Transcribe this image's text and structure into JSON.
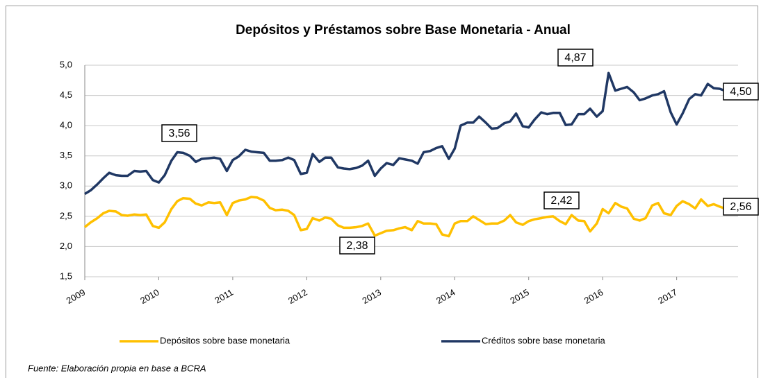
{
  "chart_data": {
    "type": "line",
    "title": "Depósitos y Préstamos sobre Base Monetaria - Anual",
    "x": [
      2009,
      2009.08,
      2009.17,
      2009.25,
      2009.33,
      2009.42,
      2009.5,
      2009.58,
      2009.67,
      2009.75,
      2009.83,
      2009.92,
      2010,
      2010.08,
      2010.17,
      2010.25,
      2010.33,
      2010.42,
      2010.5,
      2010.58,
      2010.67,
      2010.75,
      2010.83,
      2010.92,
      2011,
      2011.08,
      2011.17,
      2011.25,
      2011.33,
      2011.42,
      2011.5,
      2011.58,
      2011.67,
      2011.75,
      2011.83,
      2011.92,
      2012,
      2012.08,
      2012.17,
      2012.25,
      2012.33,
      2012.42,
      2012.5,
      2012.58,
      2012.67,
      2012.75,
      2012.83,
      2012.92,
      2013,
      2013.08,
      2013.17,
      2013.25,
      2013.33,
      2013.42,
      2013.5,
      2013.58,
      2013.67,
      2013.75,
      2013.83,
      2013.92,
      2014,
      2014.08,
      2014.17,
      2014.25,
      2014.33,
      2014.42,
      2014.5,
      2014.58,
      2014.67,
      2014.75,
      2014.83,
      2014.92,
      2015,
      2015.08,
      2015.17,
      2015.25,
      2015.33,
      2015.42,
      2015.5,
      2015.58,
      2015.67,
      2015.75,
      2015.83,
      2015.92,
      2016,
      2016.08,
      2016.17,
      2016.25,
      2016.33,
      2016.42,
      2016.5,
      2016.58,
      2016.67,
      2016.75,
      2016.83,
      2016.92,
      2017,
      2017.08,
      2017.17,
      2017.25,
      2017.33,
      2017.42,
      2017.5,
      2017.58,
      2017.67,
      2017.75
    ],
    "series": [
      {
        "name": "Depósitos sobre base monetaria",
        "color": "#ffc000",
        "values": [
          2.32,
          2.4,
          2.47,
          2.55,
          2.59,
          2.58,
          2.52,
          2.51,
          2.53,
          2.52,
          2.53,
          2.34,
          2.31,
          2.4,
          2.62,
          2.75,
          2.8,
          2.79,
          2.71,
          2.68,
          2.73,
          2.72,
          2.73,
          2.52,
          2.72,
          2.76,
          2.78,
          2.82,
          2.81,
          2.76,
          2.64,
          2.6,
          2.61,
          2.59,
          2.52,
          2.27,
          2.29,
          2.47,
          2.43,
          2.48,
          2.46,
          2.35,
          2.31,
          2.31,
          2.32,
          2.34,
          2.38,
          2.18,
          2.22,
          2.26,
          2.27,
          2.3,
          2.32,
          2.27,
          2.42,
          2.38,
          2.38,
          2.37,
          2.2,
          2.17,
          2.38,
          2.42,
          2.42,
          2.5,
          2.44,
          2.37,
          2.38,
          2.38,
          2.43,
          2.52,
          2.4,
          2.36,
          2.42,
          2.45,
          2.47,
          2.49,
          2.5,
          2.42,
          2.37,
          2.52,
          2.43,
          2.42,
          2.25,
          2.38,
          2.62,
          2.55,
          2.72,
          2.66,
          2.63,
          2.46,
          2.43,
          2.47,
          2.68,
          2.72,
          2.55,
          2.52,
          2.67,
          2.75,
          2.7,
          2.63,
          2.78,
          2.67,
          2.7,
          2.66,
          2.62,
          2.56
        ]
      },
      {
        "name": "Créditos sobre base monetaria",
        "color": "#203864",
        "values": [
          2.87,
          2.93,
          3.03,
          3.13,
          3.22,
          3.18,
          3.17,
          3.17,
          3.25,
          3.24,
          3.25,
          3.1,
          3.06,
          3.18,
          3.42,
          3.56,
          3.55,
          3.5,
          3.4,
          3.45,
          3.46,
          3.47,
          3.45,
          3.25,
          3.43,
          3.49,
          3.6,
          3.57,
          3.56,
          3.55,
          3.42,
          3.42,
          3.43,
          3.47,
          3.43,
          3.2,
          3.22,
          3.53,
          3.4,
          3.47,
          3.47,
          3.31,
          3.29,
          3.28,
          3.3,
          3.34,
          3.42,
          3.17,
          3.29,
          3.38,
          3.35,
          3.46,
          3.44,
          3.42,
          3.37,
          3.56,
          3.58,
          3.63,
          3.66,
          3.45,
          3.62,
          4.0,
          4.05,
          4.05,
          4.15,
          4.05,
          3.95,
          3.96,
          4.04,
          4.07,
          4.2,
          3.99,
          3.97,
          4.1,
          4.22,
          4.19,
          4.21,
          4.21,
          4.01,
          4.02,
          4.19,
          4.19,
          4.28,
          4.15,
          4.24,
          4.87,
          4.58,
          4.61,
          4.64,
          4.55,
          4.42,
          4.45,
          4.5,
          4.52,
          4.57,
          4.22,
          4.02,
          4.2,
          4.44,
          4.52,
          4.5,
          4.69,
          4.62,
          4.61,
          4.57,
          4.5
        ]
      }
    ],
    "xlim": [
      2009,
      2017.83
    ],
    "xticks": [
      2009,
      2010,
      2011,
      2012,
      2013,
      2014,
      2015,
      2016,
      2017
    ],
    "ylim": [
      1.5,
      5
    ],
    "yticks": [
      {
        "value": 1.5,
        "label": "1,5"
      },
      {
        "value": 2,
        "label": "2,0"
      },
      {
        "value": 2.5,
        "label": "2,5"
      },
      {
        "value": 3,
        "label": "3,0"
      },
      {
        "value": 3.5,
        "label": "3,5"
      },
      {
        "value": 4,
        "label": "4,0"
      },
      {
        "value": 4.5,
        "label": "4,5"
      },
      {
        "value": 5,
        "label": "5,0"
      }
    ],
    "grid": true,
    "legend": "bottom",
    "annotations": [
      "3,56",
      "4,87",
      "2,38",
      "2,42",
      "4,50",
      "2,56"
    ],
    "source": "Fuente: Elaboración propia en base a BCRA"
  }
}
